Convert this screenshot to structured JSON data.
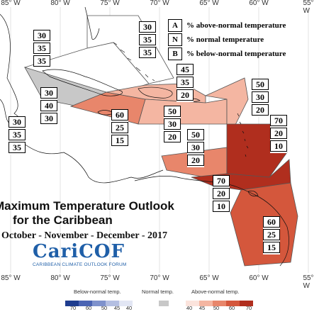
{
  "title": "Maximum Temperature Outlook",
  "title_line2": "for the Caribbean",
  "subtitle": "October - November - December - 2017",
  "logo": {
    "name": "CariCOF",
    "tagline": "CARIBBEAN CLIMATE OUTLOOK FORUM"
  },
  "longitudes": [
    "85° W",
    "80° W",
    "75° W",
    "70° W",
    "65° W",
    "60° W",
    "55° W"
  ],
  "legend": [
    {
      "key": "A",
      "text": "% above-normal temperature"
    },
    {
      "key": "N",
      "text": "% normal temperature"
    },
    {
      "key": "B",
      "text": "% below-normal temperature"
    }
  ],
  "regions": [
    {
      "id": "bahamas",
      "values": [
        "30",
        "35",
        "35"
      ]
    },
    {
      "id": "gulf-mexico",
      "values": [
        "30",
        "35",
        "35"
      ]
    },
    {
      "id": "cuba",
      "values": [
        "30",
        "40",
        "30"
      ]
    },
    {
      "id": "belize",
      "values": [
        "30",
        "35",
        "35"
      ]
    },
    {
      "id": "jamaica",
      "values": [
        "60",
        "25",
        "15"
      ]
    },
    {
      "id": "hispaniola-north",
      "values": [
        "45",
        "35",
        "20"
      ]
    },
    {
      "id": "hispaniola-south",
      "values": [
        "50",
        "30",
        "20"
      ]
    },
    {
      "id": "leeward-north",
      "values": [
        "50",
        "30",
        "20"
      ]
    },
    {
      "id": "abc-islands",
      "values": [
        "50",
        "30",
        "20"
      ]
    },
    {
      "id": "windward",
      "values": [
        "70",
        "20",
        "10"
      ]
    },
    {
      "id": "trinidad",
      "values": [
        "70",
        "20",
        "10"
      ]
    },
    {
      "id": "guianas",
      "values": [
        "60",
        "25",
        "15"
      ]
    }
  ],
  "colorbars": {
    "below": {
      "title": "Below-normal temp.",
      "ticks": [
        "70",
        "60",
        "50",
        "45",
        "40"
      ],
      "colors": [
        "#1f3d8f",
        "#4b64b3",
        "#7f92cc",
        "#b4bfe2",
        "#e2e6f4"
      ]
    },
    "normal": {
      "title": "Normal temp.",
      "ticks": [],
      "colors": [
        "#c8c8c8"
      ]
    },
    "above": {
      "title": "Above-normal temp.",
      "ticks": [
        "40",
        "45",
        "50",
        "60",
        "70"
      ],
      "colors": [
        "#fbe3dc",
        "#f4b6a2",
        "#e8866b",
        "#d4573c",
        "#b02e1e"
      ]
    }
  }
}
